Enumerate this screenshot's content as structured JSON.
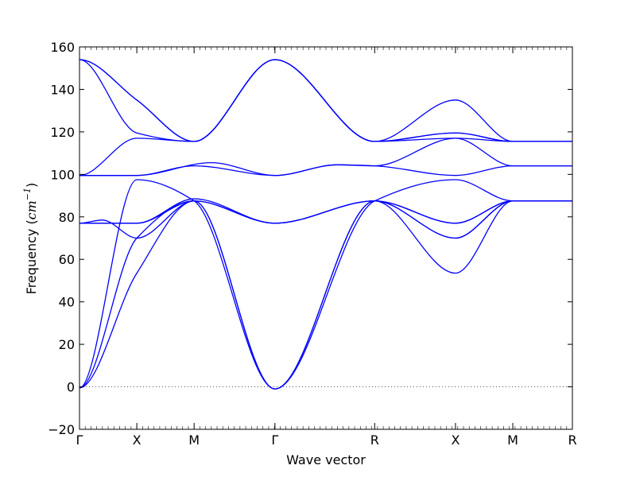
{
  "chart_data": {
    "type": "line",
    "title": "",
    "xlabel": "Wave vector",
    "ylabel": {
      "prefix": "Frequency (",
      "unit_text": "cm",
      "unit_sup": "−1",
      "suffix": ")"
    },
    "ylim": [
      -20,
      160
    ],
    "yticks": [
      -20,
      0,
      20,
      40,
      60,
      80,
      100,
      120,
      140,
      160
    ],
    "ytick_labels": [
      "−20",
      "0",
      "20",
      "40",
      "60",
      "80",
      "100",
      "120",
      "140",
      "160"
    ],
    "xlim": [
      0,
      8.6
    ],
    "high_symmetry_points": [
      {
        "label": "Γ",
        "x": 0
      },
      {
        "label": "X",
        "x": 1
      },
      {
        "label": "M",
        "x": 2
      },
      {
        "label": "Γ",
        "x": 3.41
      },
      {
        "label": "R",
        "x": 5.15
      },
      {
        "label": "X",
        "x": 6.56
      },
      {
        "label": "M",
        "x": 7.56
      },
      {
        "label": "R",
        "x": 8.6
      }
    ],
    "zero_line": {
      "y": 0,
      "style": "dotted"
    },
    "line_color": "#0000ff",
    "series": [
      {
        "points": [
          [
            0,
            -0.5
          ],
          [
            1,
            53.5
          ],
          [
            2,
            87.5
          ],
          [
            3.41,
            -1
          ],
          [
            5.15,
            87.5
          ],
          [
            6.56,
            53.5
          ],
          [
            7.56,
            87.5
          ],
          [
            8.6,
            87.5
          ]
        ]
      },
      {
        "points": [
          [
            0,
            -0.5
          ],
          [
            1,
            70
          ],
          [
            2,
            87.5
          ],
          [
            3.41,
            -1
          ],
          [
            5.15,
            87.5
          ],
          [
            6.56,
            70
          ],
          [
            7.56,
            87.5
          ],
          [
            8.6,
            87.5
          ]
        ]
      },
      {
        "points": [
          [
            0,
            -0.5
          ],
          [
            1,
            97.5
          ],
          [
            2,
            87.5
          ],
          [
            3.41,
            -1
          ],
          [
            5.15,
            87.5
          ],
          [
            6.56,
            97.5
          ],
          [
            7.56,
            87.5
          ],
          [
            8.6,
            87.5
          ]
        ]
      },
      {
        "points": [
          [
            0,
            77
          ],
          [
            0.4,
            78.5
          ],
          [
            1,
            70
          ],
          [
            2,
            87.5
          ],
          [
            3.41,
            77
          ],
          [
            5.15,
            87.5
          ],
          [
            6.56,
            77
          ],
          [
            7.56,
            87.5
          ],
          [
            8.6,
            87.5
          ]
        ]
      },
      {
        "points": [
          [
            0,
            77
          ],
          [
            1,
            77
          ],
          [
            2,
            87.5
          ],
          [
            3.41,
            77
          ],
          [
            5.15,
            87.5
          ],
          [
            6.56,
            70
          ],
          [
            7.56,
            87.5
          ],
          [
            8.6,
            87.5
          ]
        ]
      },
      {
        "points": [
          [
            0,
            77
          ],
          [
            1,
            77
          ],
          [
            2,
            88.5
          ],
          [
            3.41,
            77
          ],
          [
            5.15,
            87.5
          ],
          [
            6.56,
            77
          ],
          [
            7.56,
            87.5
          ],
          [
            8.6,
            87.5
          ]
        ]
      },
      {
        "points": [
          [
            0,
            99.5
          ],
          [
            1,
            117
          ],
          [
            2,
            115.5
          ],
          [
            3.41,
            154
          ],
          [
            5.15,
            115.5
          ],
          [
            6.56,
            117
          ],
          [
            7.56,
            115.5
          ],
          [
            8.6,
            115.5
          ]
        ]
      },
      {
        "points": [
          [
            0,
            99.5
          ],
          [
            1,
            99.5
          ],
          [
            2,
            104
          ],
          [
            3.41,
            99.5
          ],
          [
            4.5,
            104.5
          ],
          [
            5.15,
            104
          ],
          [
            6.56,
            117
          ],
          [
            7.56,
            104
          ],
          [
            8.6,
            104
          ]
        ]
      },
      {
        "points": [
          [
            0,
            99.5
          ],
          [
            1,
            99.5
          ],
          [
            2.3,
            105.5
          ],
          [
            3.41,
            99.5
          ],
          [
            4.5,
            104.5
          ],
          [
            5.15,
            104
          ],
          [
            6.56,
            99.5
          ],
          [
            7.56,
            104
          ],
          [
            8.6,
            104
          ]
        ]
      },
      {
        "points": [
          [
            0,
            154
          ],
          [
            1,
            135
          ],
          [
            2,
            115.5
          ],
          [
            3.41,
            154
          ],
          [
            5.15,
            115.5
          ],
          [
            6.56,
            135
          ],
          [
            7.56,
            115.5
          ],
          [
            8.6,
            115.5
          ]
        ]
      },
      {
        "points": [
          [
            0,
            154
          ],
          [
            1,
            119.5
          ],
          [
            2,
            115.5
          ],
          [
            3.41,
            154
          ],
          [
            5.15,
            115.5
          ],
          [
            6.56,
            119.5
          ],
          [
            7.56,
            115.5
          ],
          [
            8.6,
            115.5
          ]
        ]
      },
      {
        "points": [
          [
            0,
            154
          ],
          [
            1,
            135
          ],
          [
            2,
            115.5
          ],
          [
            3.41,
            154
          ],
          [
            5.15,
            115.5
          ],
          [
            6.56,
            119.5
          ],
          [
            7.56,
            115.5
          ],
          [
            8.6,
            115.5
          ]
        ]
      }
    ]
  }
}
